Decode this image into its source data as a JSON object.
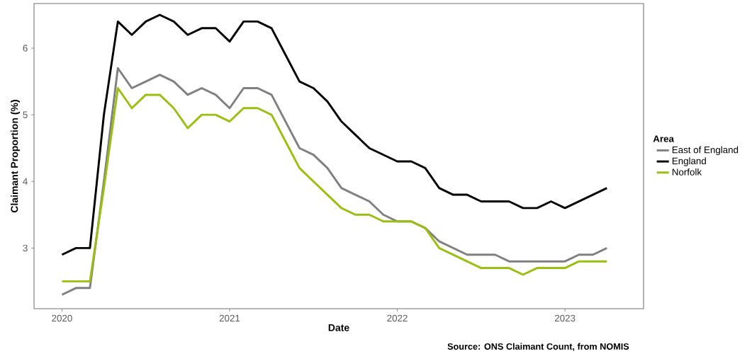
{
  "chart_data": {
    "type": "line",
    "xlabel": "Date",
    "ylabel": "Claimant Proportion (%)",
    "legend_title": "Area",
    "legend": "right",
    "annotations": [
      "Source: ONS Claimant Count, from NOMIS"
    ],
    "x": [
      "2020-01",
      "2020-02",
      "2020-03",
      "2020-04",
      "2020-05",
      "2020-06",
      "2020-07",
      "2020-08",
      "2020-09",
      "2020-10",
      "2020-11",
      "2020-12",
      "2021-01",
      "2021-02",
      "2021-03",
      "2021-04",
      "2021-05",
      "2021-06",
      "2021-07",
      "2021-08",
      "2021-09",
      "2021-10",
      "2021-11",
      "2021-12",
      "2022-01",
      "2022-02",
      "2022-03",
      "2022-04",
      "2022-05",
      "2022-06",
      "2022-07",
      "2022-08",
      "2022-09",
      "2022-10",
      "2022-11",
      "2022-12",
      "2023-01",
      "2023-02",
      "2023-03",
      "2023-04"
    ],
    "series": [
      {
        "name": "East of England",
        "color": "#808080",
        "values": [
          2.3,
          2.4,
          2.4,
          4.0,
          5.7,
          5.4,
          5.5,
          5.6,
          5.5,
          5.3,
          5.4,
          5.3,
          5.1,
          5.4,
          5.4,
          5.3,
          4.9,
          4.5,
          4.4,
          4.2,
          3.9,
          3.8,
          3.7,
          3.5,
          3.4,
          3.4,
          3.3,
          3.1,
          3.0,
          2.9,
          2.9,
          2.9,
          2.8,
          2.8,
          2.8,
          2.8,
          2.8,
          2.9,
          2.9,
          3.0
        ]
      },
      {
        "name": "England",
        "color": "#000000",
        "values": [
          2.9,
          3.0,
          3.0,
          5.0,
          6.4,
          6.2,
          6.4,
          6.5,
          6.4,
          6.2,
          6.3,
          6.3,
          6.1,
          6.4,
          6.4,
          6.3,
          5.9,
          5.5,
          5.4,
          5.2,
          4.9,
          4.7,
          4.5,
          4.4,
          4.3,
          4.3,
          4.2,
          3.9,
          3.8,
          3.8,
          3.7,
          3.7,
          3.7,
          3.6,
          3.6,
          3.7,
          3.6,
          3.7,
          3.8,
          3.9
        ]
      },
      {
        "name": "Norfolk",
        "color": "#99bf0f",
        "values": [
          2.5,
          2.5,
          2.5,
          3.9,
          5.4,
          5.1,
          5.3,
          5.3,
          5.1,
          4.8,
          5.0,
          5.0,
          4.9,
          5.1,
          5.1,
          5.0,
          4.6,
          4.2,
          4.0,
          3.8,
          3.6,
          3.5,
          3.5,
          3.4,
          3.4,
          3.4,
          3.3,
          3.0,
          2.9,
          2.8,
          2.7,
          2.7,
          2.7,
          2.6,
          2.7,
          2.7,
          2.7,
          2.8,
          2.8,
          2.8
        ]
      }
    ],
    "xlim": [
      "2019-11-01",
      "2023-06-20"
    ],
    "ylim": [
      2.09,
      6.67
    ],
    "xticks": [
      "2020",
      "2021",
      "2022",
      "2023"
    ],
    "yticks": [
      3,
      4,
      5,
      6
    ],
    "line_style": "solid",
    "marker": "none"
  }
}
